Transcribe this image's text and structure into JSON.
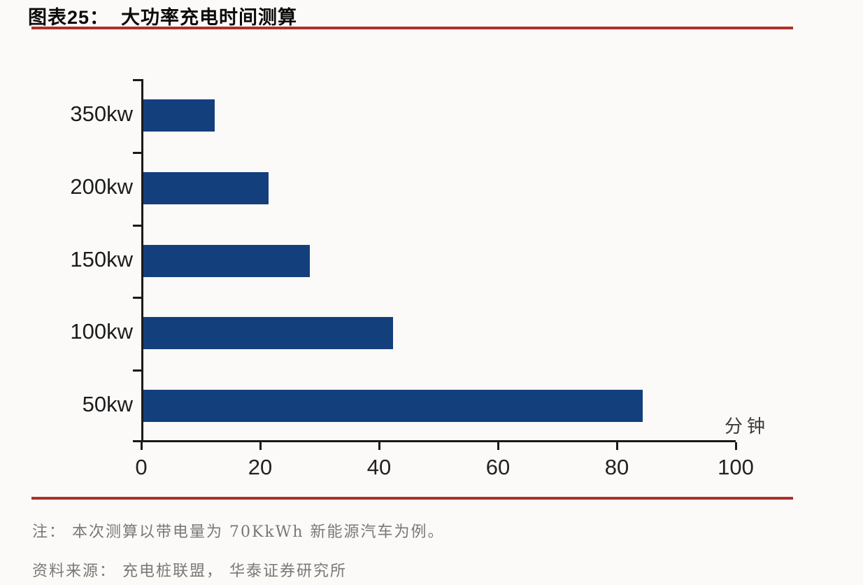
{
  "header": {
    "title": "图表25：  大功率充电时间测算"
  },
  "chart_data": {
    "type": "bar",
    "orientation": "horizontal",
    "title": "图表25： 大功率充电时间测算",
    "categories": [
      "350kw",
      "200kw",
      "150kw",
      "100kw",
      "50kw"
    ],
    "values": [
      12,
      21,
      28,
      42,
      84
    ],
    "xlabel": "分钟",
    "ylabel": "",
    "unit_label": "分钟",
    "x_ticks": [
      0,
      20,
      40,
      60,
      80,
      100
    ],
    "xlim": [
      0,
      100
    ],
    "grid": false,
    "legend": false,
    "bar_color": "#143f7d"
  },
  "footer": {
    "note": "注：  本次测算以带电量为 70KkWh 新能源汽车为例。",
    "source": "资料来源：  充电桩联盟，  华泰证券研究所"
  },
  "colors": {
    "accent_red": "#ac3128",
    "bar_blue": "#143f7d",
    "axis_black": "#1a1a1a",
    "note_gray": "#7b7874",
    "background": "#fbfaf8"
  }
}
